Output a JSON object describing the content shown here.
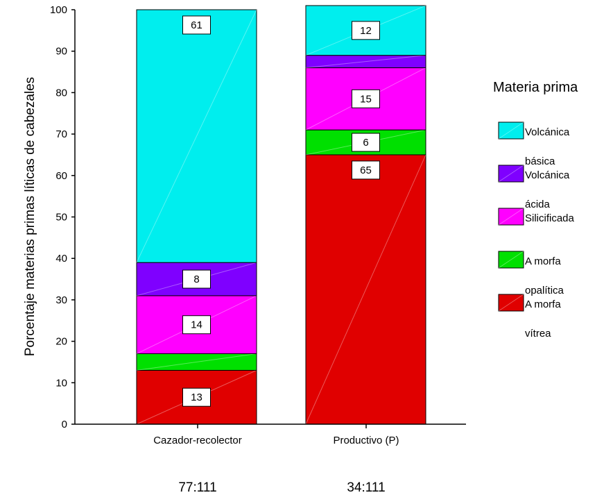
{
  "chart_data": {
    "type": "bar",
    "stacked": true,
    "categories": [
      "Cazador-recolector",
      "Productivo (P)"
    ],
    "sample_labels": [
      "77:111",
      "34:111"
    ],
    "ylabel": "Porcentaje materias primas líticas de cabezales",
    "ylim": [
      0,
      100
    ],
    "yticks": [
      0,
      10,
      20,
      30,
      40,
      50,
      60,
      70,
      80,
      90,
      100
    ],
    "legend_title": "Materia prima",
    "legend_position": "right",
    "series": [
      {
        "name": "Amorfa vítrea",
        "legend_lines": [
          "A morfa",
          "vítrea"
        ],
        "color": "#e00000",
        "values": [
          13,
          65
        ],
        "labels": [
          "13",
          "65"
        ]
      },
      {
        "name": "Amorfa opalítica",
        "legend_lines": [
          "A morfa",
          "opalítica"
        ],
        "color": "#00e000",
        "values": [
          4,
          6
        ],
        "labels": [
          "",
          "6"
        ]
      },
      {
        "name": "Silicificada",
        "legend_lines": [
          "Silicificada"
        ],
        "color": "#ff00ff",
        "values": [
          14,
          15
        ],
        "labels": [
          "14",
          "15"
        ]
      },
      {
        "name": "Volcánica ácida",
        "legend_lines": [
          "Volcánica",
          "ácida"
        ],
        "color": "#7f00ff",
        "values": [
          8,
          3
        ],
        "labels": [
          "8",
          ""
        ]
      },
      {
        "name": "Volcánica básica",
        "legend_lines": [
          "Volcánica",
          "básica"
        ],
        "color": "#00eeee",
        "values": [
          61,
          12
        ],
        "labels": [
          "61",
          "12"
        ]
      }
    ]
  }
}
